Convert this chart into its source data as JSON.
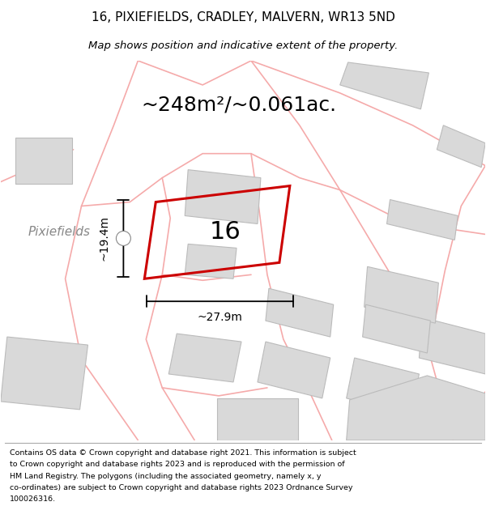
{
  "title_line1": "16, PIXIEFIELDS, CRADLEY, MALVERN, WR13 5ND",
  "title_line2": "Map shows position and indicative extent of the property.",
  "area_text": "~248m²/~0.061ac.",
  "label_number": "16",
  "label_street": "Pixiefields",
  "dim_height": "~19.4m",
  "dim_width": "~27.9m",
  "footer_lines": [
    "Contains OS data © Crown copyright and database right 2021. This information is subject",
    "to Crown copyright and database rights 2023 and is reproduced with the permission of",
    "HM Land Registry. The polygons (including the associated geometry, namely x, y",
    "co-ordinates) are subject to Crown copyright and database rights 2023 Ordnance Survey",
    "100026316."
  ],
  "map_bg_color": "#ffffff",
  "road_color": "#f5aaaa",
  "building_color": "#d9d9d9",
  "building_edge_color": "#bbbbbb",
  "highlight_color": "#cc0000",
  "text_color": "#000000"
}
